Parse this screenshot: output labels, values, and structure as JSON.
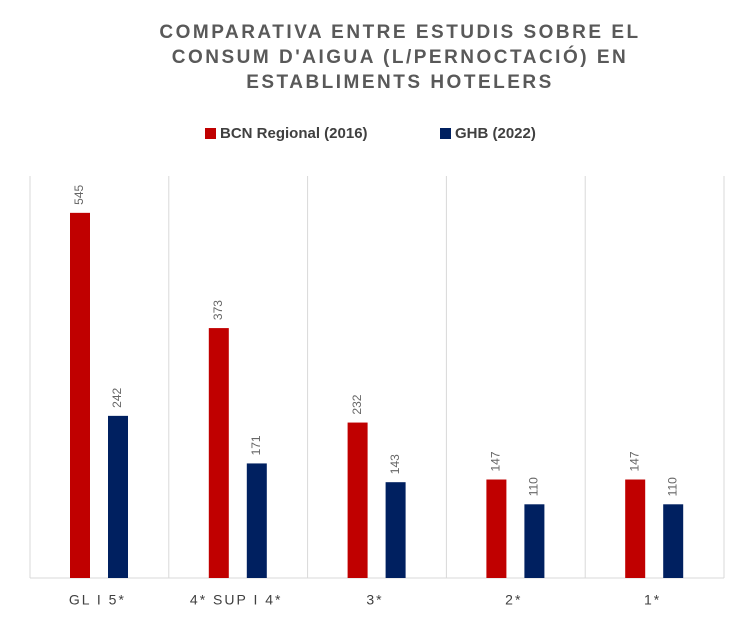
{
  "chart_data": {
    "type": "bar",
    "title": "COMPARATIVA ENTRE ESTUDIS SOBRE EL CONSUM D'AIGUA (L/PERNOCTACIÓ) EN ESTABLIMENTS HOTELERS",
    "categories": [
      "GL I 5*",
      "4* SUP I 4*",
      "3*",
      "2*",
      "1*"
    ],
    "series": [
      {
        "name": "BCN Regional (2016)",
        "color": "#c00000",
        "values": [
          545,
          373,
          232,
          147,
          147
        ]
      },
      {
        "name": "GHB (2022)",
        "color": "#002060",
        "values": [
          242,
          171,
          143,
          110,
          110
        ]
      }
    ],
    "ylim": [
      0,
      600
    ]
  }
}
